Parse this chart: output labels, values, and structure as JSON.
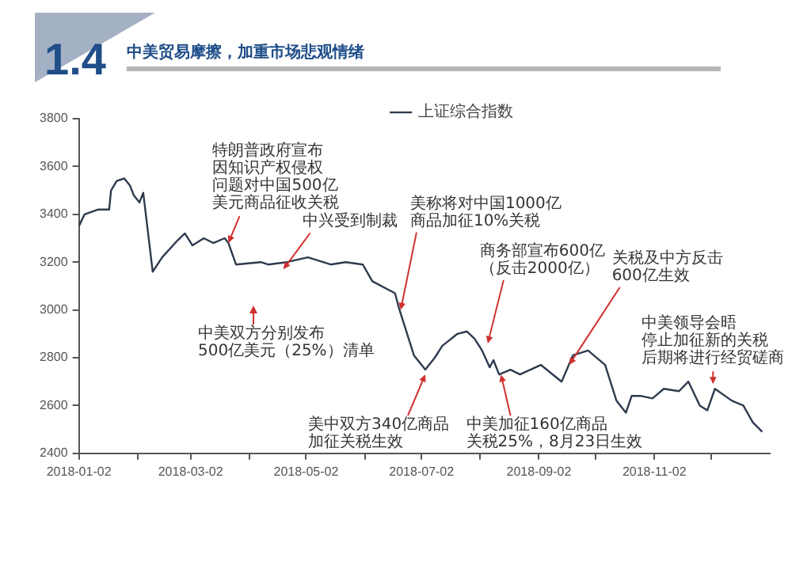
{
  "chart_data": {
    "type": "line",
    "title": "中美贸易摩擦，加重市场悲观情绪",
    "subtitle": "1.4",
    "x": [
      "2018-01-02",
      "2018-01-05",
      "2018-01-12",
      "2018-01-18",
      "2018-01-19",
      "2018-01-22",
      "2018-01-26",
      "2018-01-29",
      "2018-01-31",
      "2018-02-03",
      "2018-02-05",
      "2018-02-10",
      "2018-02-15",
      "2018-02-23",
      "2018-02-27",
      "2018-03-03",
      "2018-03-09",
      "2018-03-14",
      "2018-03-20",
      "2018-03-22",
      "2018-03-26",
      "2018-04-08",
      "2018-04-12",
      "2018-04-22",
      "2018-05-03",
      "2018-05-15",
      "2018-05-23",
      "2018-06-01",
      "2018-06-06",
      "2018-06-18",
      "2018-06-20",
      "2018-06-28",
      "2018-07-04",
      "2018-07-09",
      "2018-07-13",
      "2018-07-21",
      "2018-07-26",
      "2018-07-30",
      "2018-08-03",
      "2018-08-07",
      "2018-08-09",
      "2018-08-12",
      "2018-08-18",
      "2018-08-23",
      "2018-09-03",
      "2018-09-14",
      "2018-09-20",
      "2018-09-28",
      "2018-10-07",
      "2018-10-13",
      "2018-10-18",
      "2018-10-21",
      "2018-10-26",
      "2018-11-01",
      "2018-11-07",
      "2018-11-15",
      "2018-11-20",
      "2018-11-26",
      "2018-11-30",
      "2018-12-04",
      "2018-12-13",
      "2018-12-19",
      "2018-12-24",
      "2018-12-29"
    ],
    "series": [
      {
        "name": "上证综合指数",
        "color": "#2e3b4e",
        "values": [
          3350,
          3400,
          3420,
          3420,
          3500,
          3540,
          3550,
          3520,
          3480,
          3450,
          3490,
          3160,
          3220,
          3290,
          3320,
          3270,
          3300,
          3280,
          3300,
          3280,
          3190,
          3200,
          3190,
          3200,
          3220,
          3190,
          3200,
          3190,
          3120,
          3070,
          3010,
          2810,
          2750,
          2800,
          2850,
          2900,
          2910,
          2880,
          2830,
          2760,
          2790,
          2730,
          2750,
          2730,
          2770,
          2700,
          2810,
          2830,
          2770,
          2620,
          2570,
          2640,
          2640,
          2630,
          2670,
          2660,
          2700,
          2600,
          2580,
          2670,
          2620,
          2600,
          2530,
          2490
        ]
      }
    ],
    "xlim": [
      "2018-01-02",
      "2019-01-02"
    ],
    "xticks": [
      "2018-01-02",
      {
        "value": "2018-02-02",
        "label": null
      },
      "2018-03-02",
      {
        "value": "2018-04-02",
        "label": null
      },
      "2018-05-02",
      {
        "value": "2018-06-02",
        "label": null
      },
      "2018-07-02",
      {
        "value": "2018-08-02",
        "label": null
      },
      "2018-09-02",
      {
        "value": "2018-10-02",
        "label": null
      },
      "2018-11-02",
      {
        "value": "2018-12-02",
        "label": null
      }
    ],
    "ylim": [
      2400,
      3800
    ],
    "yticks": [
      2400,
      2600,
      2800,
      3000,
      3200,
      3400,
      3600,
      3800
    ],
    "grid": false,
    "legend": "top",
    "marker": "none",
    "line_style": "solid",
    "annotations": [
      {
        "text": "特朗普政府宣布因知识产权侵权问题对中国500亿美元商品征收关税",
        "x": "2018-03-22",
        "y": 3280
      },
      {
        "text": "中兴受到制裁",
        "x": "2018-04-20",
        "y": 3170
      },
      "中美双方分别发布500亿美元（25%）清单",
      {
        "text": "美称将对中国1000亿商品加征10%关税",
        "x": "2018-06-21",
        "y": 3000
      },
      {
        "text": "商务部宣布600亿（反击2000亿）",
        "x": "2018-08-06",
        "y": 2860
      },
      {
        "text": "关税及中方反击600亿生效",
        "x": "2018-09-18",
        "y": 2770
      },
      {
        "text": "中美领导会晤停止加征新的关税后期将进行经贸磋商",
        "x": "2018-12-03",
        "y": 2690
      },
      {
        "text": "美中双方340亿商品加征关税生效",
        "x": "2018-07-04",
        "y": 2730
      },
      {
        "text": "中美加征160亿商品关税25%，8月23日生效",
        "x": "2018-08-13",
        "y": 2730
      }
    ]
  }
}
